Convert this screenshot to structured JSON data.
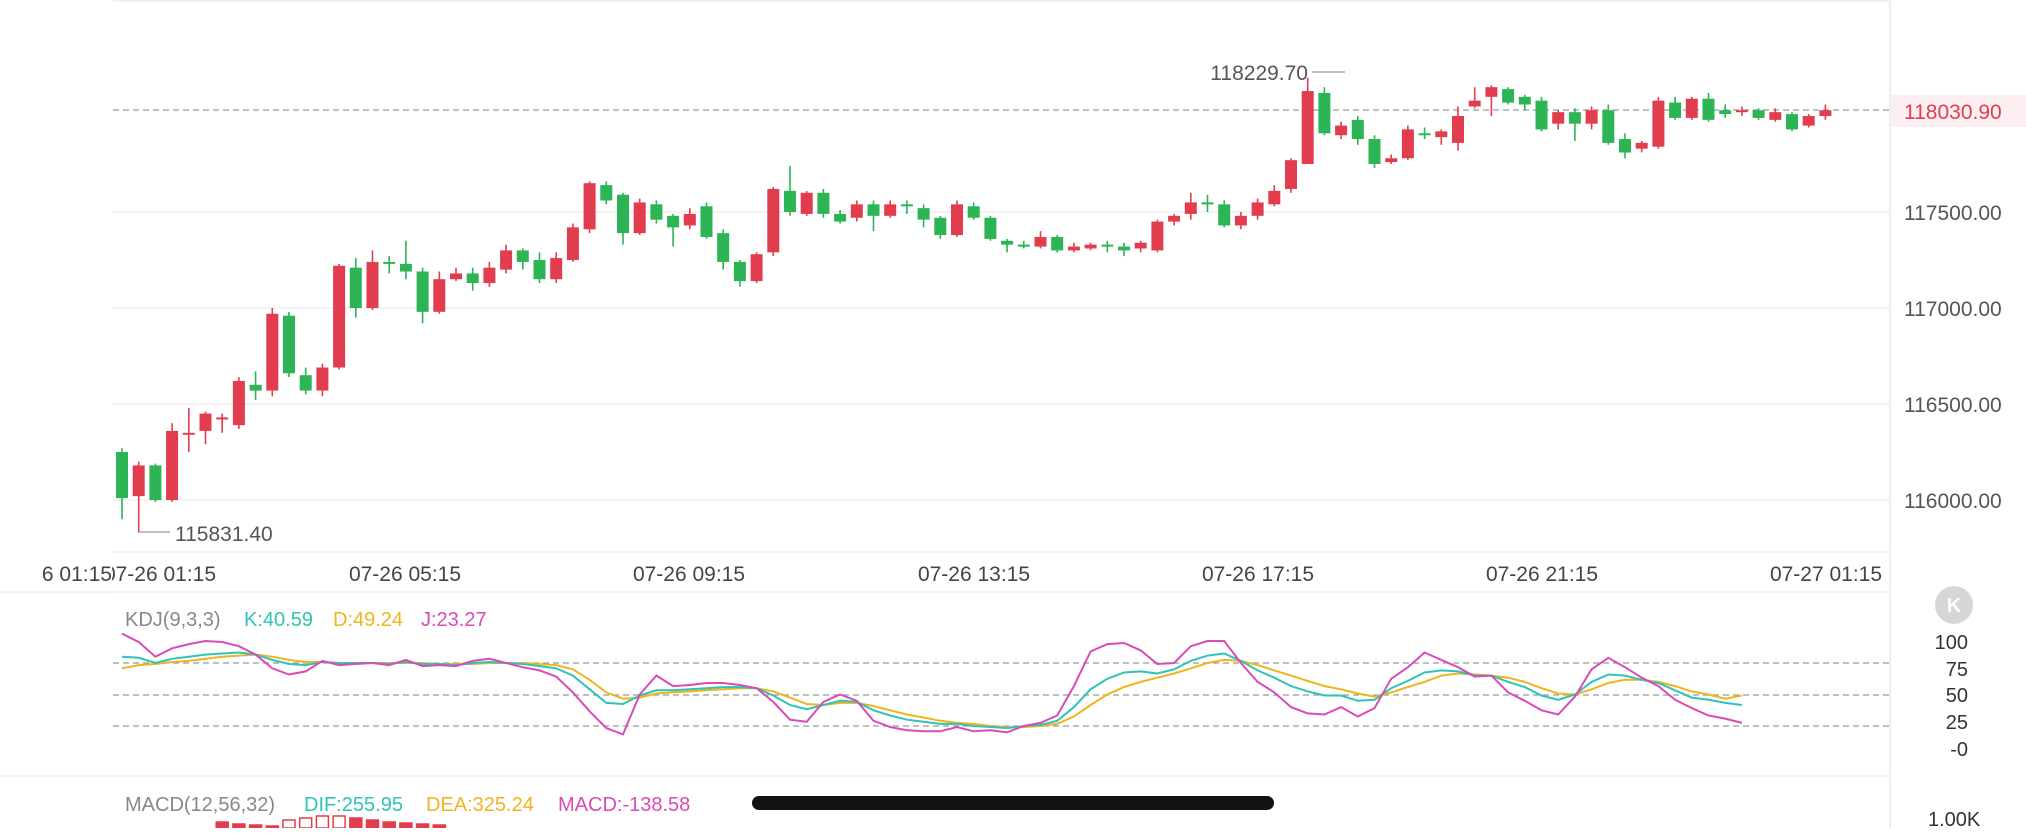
{
  "colors": {
    "up": "#e23d4f",
    "down": "#2db455",
    "k_line": "#2ec4b6",
    "d_line": "#f0b41e",
    "j_line": "#d94bb6",
    "dif_line": "#2ec4b6",
    "dea_line": "#f0b41e",
    "macd_text": "#d94bb6",
    "grid": "#eeeeee",
    "axis_text": "#555555",
    "last_price": "#e23d4f",
    "last_price_bg": "#fdeff1"
  },
  "main": {
    "y_ticks": [
      "118030.90",
      "117500.00",
      "117000.00",
      "116500.00",
      "116000.00"
    ],
    "last_price": "118030.90",
    "high_label": "118229.70",
    "low_label": "115831.40"
  },
  "time_axis": {
    "labels": [
      "07-26 01:15",
      "07-26 05:15",
      "07-26 09:15",
      "07-26 13:15",
      "07-26 17:15",
      "07-26 21:15",
      "07-27 01:15"
    ]
  },
  "kdj": {
    "name": "KDJ(9,3,3)",
    "k_label": "K:40.59",
    "d_label": "D:49.24",
    "j_label": "J:23.27",
    "y_ticks": [
      "100",
      "75",
      "50",
      "25",
      "-0"
    ],
    "collapse_icon": "k-badge-icon",
    "collapse_glyph": "K"
  },
  "macd": {
    "name": "MACD(12,56,32)",
    "dif_label": "DIF:255.95",
    "dea_label": "DEA:325.24",
    "macd_label": "MACD:-138.58",
    "y_tick": "1.00K"
  },
  "chart_data": [
    {
      "type": "candlestick",
      "title": "",
      "x_labels": [
        "07-26 01:15",
        "07-26 05:15",
        "07-26 09:15",
        "07-26 13:15",
        "07-26 17:15",
        "07-26 21:15",
        "07-27 01:15"
      ],
      "ylim": [
        115720,
        118300
      ],
      "y_ticks": [
        116000,
        116500,
        117000,
        117500,
        118030.9
      ],
      "grid": true,
      "high": 118229.7,
      "low": 115831.4,
      "last": 118030.9,
      "series": [
        {
          "values": [
            [
              116250,
              116010,
              116270,
              115900
            ],
            [
              116020,
              116180,
              116200,
              115830
            ],
            [
              116180,
              116000,
              116190,
              115990
            ],
            [
              116000,
              116360,
              116400,
              115990
            ],
            [
              116340,
              116350,
              116480,
              116250
            ],
            [
              116360,
              116450,
              116460,
              116290
            ],
            [
              116420,
              116430,
              116450,
              116350
            ],
            [
              116390,
              116620,
              116640,
              116370
            ],
            [
              116600,
              116570,
              116670,
              116520
            ],
            [
              116570,
              116970,
              117000,
              116540
            ],
            [
              116960,
              116660,
              116980,
              116640
            ],
            [
              116650,
              116570,
              116690,
              116550
            ],
            [
              116570,
              116690,
              116710,
              116540
            ],
            [
              116690,
              117220,
              117230,
              116680
            ],
            [
              117210,
              117000,
              117260,
              116950
            ],
            [
              117000,
              117240,
              117300,
              116990
            ],
            [
              117240,
              117230,
              117270,
              117180
            ],
            [
              117230,
              117190,
              117350,
              117150
            ],
            [
              117190,
              116980,
              117210,
              116920
            ],
            [
              116980,
              117150,
              117190,
              116970
            ],
            [
              117150,
              117180,
              117210,
              117140
            ],
            [
              117180,
              117130,
              117210,
              117090
            ],
            [
              117130,
              117210,
              117240,
              117110
            ],
            [
              117200,
              117300,
              117330,
              117180
            ],
            [
              117300,
              117240,
              117310,
              117200
            ],
            [
              117250,
              117150,
              117290,
              117130
            ],
            [
              117150,
              117260,
              117290,
              117130
            ],
            [
              117250,
              117420,
              117440,
              117240
            ],
            [
              117410,
              117650,
              117660,
              117390
            ],
            [
              117640,
              117560,
              117660,
              117540
            ],
            [
              117590,
              117390,
              117600,
              117330
            ],
            [
              117390,
              117550,
              117570,
              117380
            ],
            [
              117540,
              117460,
              117560,
              117440
            ],
            [
              117480,
              117420,
              117490,
              117320
            ],
            [
              117430,
              117490,
              117520,
              117410
            ],
            [
              117530,
              117370,
              117550,
              117360
            ],
            [
              117390,
              117240,
              117410,
              117200
            ],
            [
              117240,
              117140,
              117250,
              117110
            ],
            [
              117140,
              117280,
              117290,
              117130
            ],
            [
              117290,
              117620,
              117630,
              117270
            ],
            [
              117610,
              117500,
              117740,
              117480
            ],
            [
              117490,
              117600,
              117610,
              117480
            ],
            [
              117600,
              117490,
              117620,
              117470
            ],
            [
              117490,
              117450,
              117510,
              117440
            ],
            [
              117470,
              117540,
              117560,
              117450
            ],
            [
              117540,
              117480,
              117560,
              117400
            ],
            [
              117480,
              117540,
              117560,
              117470
            ],
            [
              117540,
              117530,
              117560,
              117490
            ],
            [
              117520,
              117460,
              117540,
              117420
            ],
            [
              117470,
              117380,
              117480,
              117360
            ],
            [
              117380,
              117540,
              117560,
              117370
            ],
            [
              117530,
              117470,
              117550,
              117460
            ],
            [
              117470,
              117360,
              117480,
              117350
            ],
            [
              117350,
              117330,
              117360,
              117290
            ],
            [
              117330,
              117320,
              117350,
              117310
            ],
            [
              117320,
              117370,
              117400,
              117310
            ],
            [
              117370,
              117300,
              117380,
              117290
            ],
            [
              117300,
              117320,
              117340,
              117290
            ],
            [
              117310,
              117330,
              117340,
              117300
            ],
            [
              117330,
              117320,
              117350,
              117290
            ],
            [
              117320,
              117300,
              117340,
              117270
            ],
            [
              117310,
              117340,
              117350,
              117290
            ],
            [
              117300,
              117450,
              117460,
              117290
            ],
            [
              117450,
              117480,
              117490,
              117430
            ],
            [
              117490,
              117550,
              117600,
              117460
            ],
            [
              117550,
              117540,
              117590,
              117500
            ],
            [
              117540,
              117430,
              117560,
              117420
            ],
            [
              117430,
              117480,
              117500,
              117410
            ],
            [
              117480,
              117550,
              117570,
              117460
            ],
            [
              117540,
              117610,
              117640,
              117530
            ],
            [
              117620,
              117770,
              117780,
              117600
            ],
            [
              117750,
              118130,
              118200,
              117750
            ],
            [
              118120,
              117910,
              118150,
              117900
            ],
            [
              117900,
              117950,
              117970,
              117880
            ],
            [
              117980,
              117880,
              118000,
              117850
            ],
            [
              117880,
              117750,
              117900,
              117730
            ],
            [
              117760,
              117780,
              117800,
              117750
            ],
            [
              117780,
              117930,
              117950,
              117770
            ],
            [
              117910,
              117900,
              117940,
              117880
            ],
            [
              117890,
              117920,
              117930,
              117850
            ],
            [
              117860,
              118000,
              118050,
              117820
            ],
            [
              118050,
              118080,
              118150,
              118040
            ],
            [
              118100,
              118150,
              118160,
              118000
            ],
            [
              118140,
              118070,
              118150,
              118060
            ],
            [
              118100,
              118060,
              118110,
              118030
            ],
            [
              118080,
              117930,
              118100,
              117920
            ],
            [
              117960,
              118020,
              118030,
              117930
            ],
            [
              118020,
              117960,
              118040,
              117870
            ],
            [
              117960,
              118030,
              118050,
              117930
            ],
            [
              118030,
              117860,
              118060,
              117850
            ],
            [
              117880,
              117810,
              117910,
              117780
            ],
            [
              117830,
              117860,
              117870,
              117810
            ],
            [
              117840,
              118080,
              118100,
              117830
            ],
            [
              118070,
              117990,
              118100,
              117980
            ],
            [
              117990,
              118090,
              118100,
              117980
            ],
            [
              118090,
              117980,
              118120,
              117970
            ],
            [
              118030,
              118010,
              118060,
              117990
            ],
            [
              118020,
              118030,
              118050,
              118000
            ],
            [
              118030,
              117990,
              118040,
              117980
            ],
            [
              117980,
              118020,
              118040,
              117970
            ],
            [
              118010,
              117930,
              118020,
              117920
            ],
            [
              117950,
              118000,
              118010,
              117940
            ],
            [
              118000,
              118030,
              118060,
              117980
            ]
          ]
        }
      ]
    },
    {
      "type": "line",
      "title": "KDJ(9,3,3)",
      "ylim": [
        -5,
        110
      ],
      "y_ticks": [
        100,
        75,
        50,
        25,
        0
      ],
      "reference_lines": [
        80,
        50,
        20
      ],
      "series": [
        {
          "name": "K",
          "values": [
            86,
            85,
            80,
            84,
            86,
            88,
            89,
            90,
            88,
            83,
            79,
            78,
            81,
            80,
            80,
            80,
            79,
            81,
            79,
            79,
            78,
            80,
            81,
            80,
            79,
            77,
            75,
            68,
            55,
            42,
            41,
            49,
            54,
            54,
            55,
            56,
            57,
            57,
            56,
            49,
            40,
            36,
            40,
            44,
            43,
            35,
            30,
            26,
            24,
            22,
            22,
            20,
            19,
            18,
            20,
            21,
            25,
            38,
            55,
            65,
            71,
            72,
            70,
            74,
            82,
            87,
            89,
            82,
            73,
            66,
            58,
            53,
            49,
            49,
            44,
            45,
            56,
            63,
            71,
            73,
            72,
            68,
            68,
            62,
            57,
            49,
            45,
            50,
            62,
            69,
            68,
            64,
            61,
            54,
            47,
            45,
            42,
            40
          ]
        },
        {
          "name": "D",
          "values": [
            75,
            78,
            79,
            81,
            82,
            84,
            86,
            87,
            88,
            86,
            83,
            81,
            81,
            80,
            80,
            80,
            80,
            80,
            80,
            79,
            79,
            79,
            80,
            80,
            80,
            79,
            78,
            74,
            64,
            52,
            46,
            47,
            51,
            52,
            53,
            54,
            55,
            56,
            56,
            53,
            47,
            41,
            40,
            42,
            42,
            39,
            35,
            31,
            28,
            25,
            23,
            22,
            20,
            19,
            19,
            20,
            22,
            29,
            40,
            50,
            57,
            62,
            66,
            70,
            75,
            80,
            83,
            82,
            78,
            73,
            68,
            63,
            58,
            55,
            51,
            48,
            52,
            57,
            62,
            68,
            70,
            69,
            68,
            66,
            62,
            56,
            51,
            50,
            55,
            61,
            64,
            64,
            62,
            58,
            53,
            50,
            46,
            49
          ]
        },
        {
          "name": "J",
          "values": [
            108,
            100,
            86,
            94,
            98,
            101,
            100,
            96,
            88,
            75,
            69,
            72,
            82,
            78,
            79,
            80,
            78,
            83,
            77,
            78,
            77,
            82,
            84,
            80,
            76,
            73,
            67,
            52,
            34,
            18,
            12,
            50,
            68,
            58,
            59,
            61,
            61,
            59,
            56,
            43,
            26,
            24,
            43,
            50,
            44,
            25,
            19,
            16,
            15,
            15,
            19,
            15,
            16,
            14,
            20,
            23,
            30,
            58,
            91,
            98,
            99,
            92,
            79,
            80,
            96,
            101,
            101,
            80,
            62,
            52,
            38,
            32,
            31,
            38,
            29,
            37,
            65,
            76,
            90,
            83,
            76,
            67,
            68,
            52,
            44,
            35,
            31,
            48,
            74,
            85,
            76,
            66,
            58,
            45,
            37,
            30,
            27,
            23
          ]
        }
      ]
    },
    {
      "type": "bar",
      "title": "MACD(12,56,32)",
      "visible_values": [
        "DIF:255.95",
        "DEA:325.24",
        "MACD:-138.58"
      ],
      "y_ticks": [
        "1.00K"
      ]
    }
  ]
}
